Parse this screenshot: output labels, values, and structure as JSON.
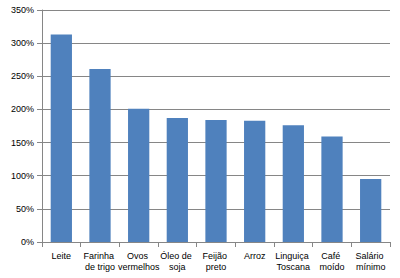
{
  "chart_data": {
    "type": "bar",
    "categories": [
      "Leite",
      "Farinha de trigo",
      "Ovos vermelhos",
      "Óleo de soja",
      "Feijão preto",
      "Arroz",
      "Linguiça Toscana",
      "Café moído",
      "Salário mínimo"
    ],
    "values": [
      313,
      261,
      201,
      187,
      184,
      183,
      176,
      159,
      95
    ],
    "color": "#4f81bd",
    "ylim": [
      0,
      350
    ],
    "yticks": [
      {
        "value": 0,
        "label": "0%"
      },
      {
        "value": 50,
        "label": "50%"
      },
      {
        "value": 100,
        "label": "100%"
      },
      {
        "value": 150,
        "label": "150%"
      },
      {
        "value": 200,
        "label": "200%"
      },
      {
        "value": 250,
        "label": "250%"
      },
      {
        "value": 300,
        "label": "300%"
      },
      {
        "value": 350,
        "label": "350%"
      }
    ],
    "grid": true
  }
}
